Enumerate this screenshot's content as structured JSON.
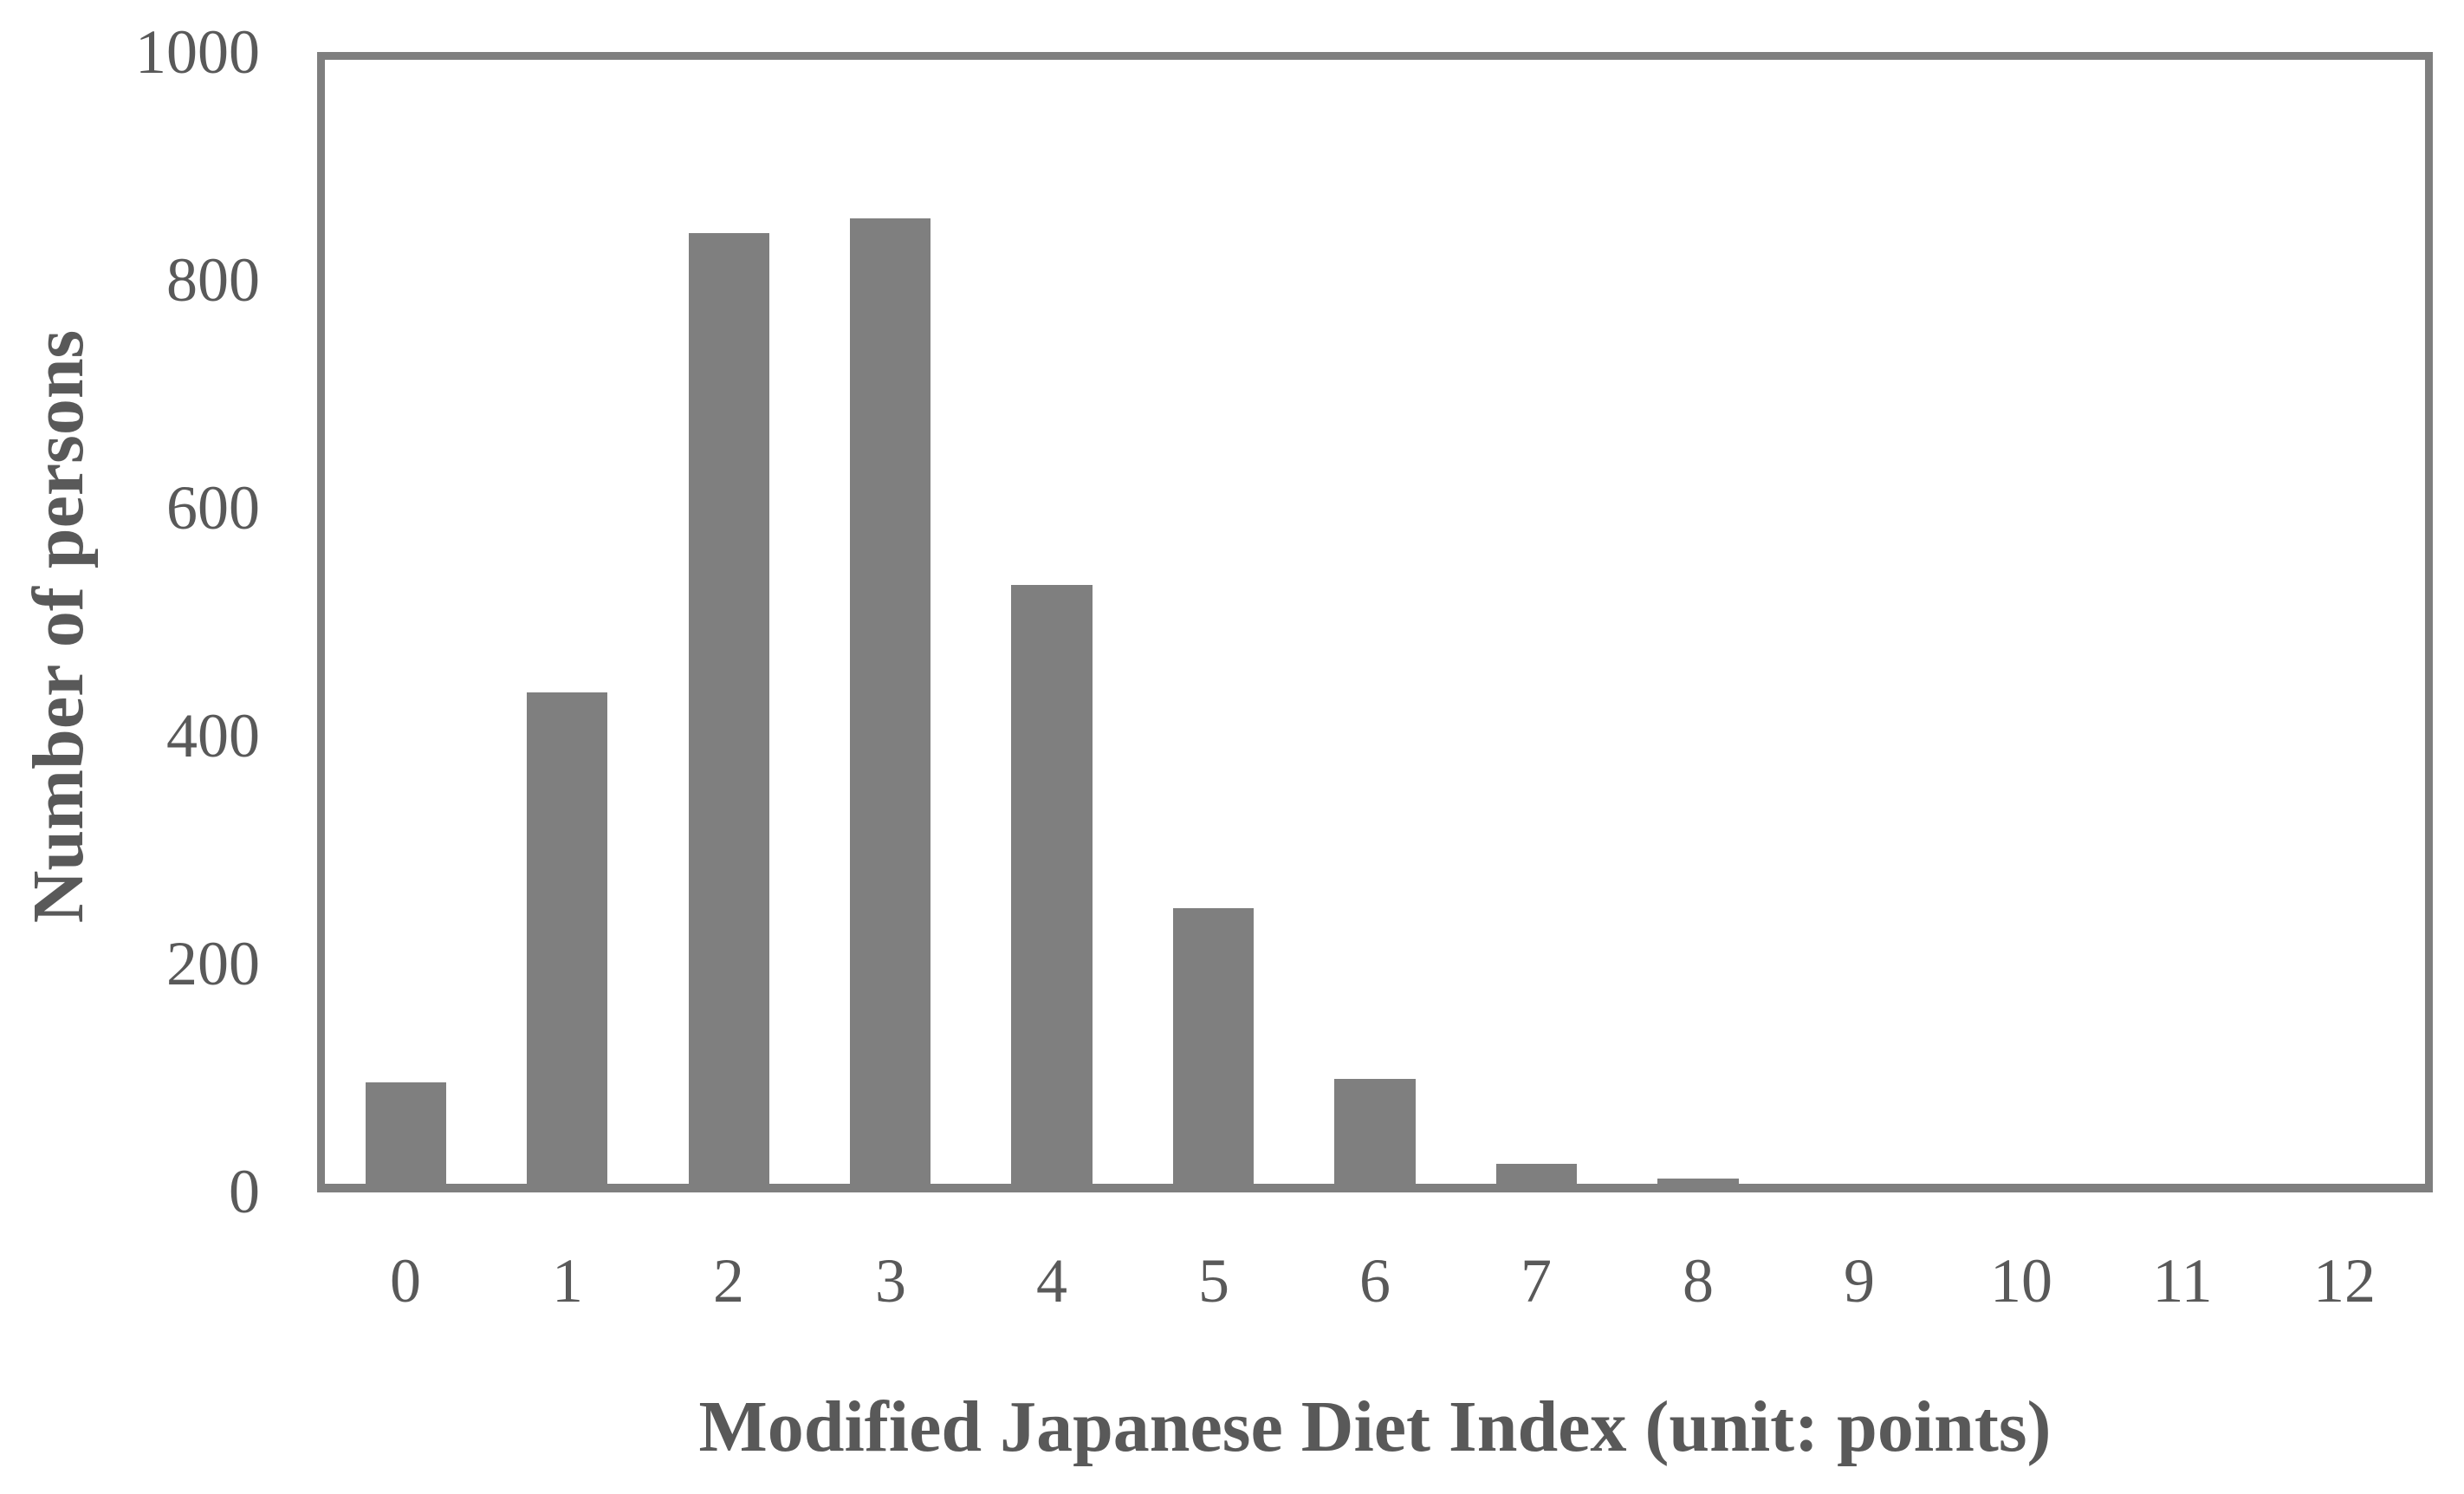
{
  "figure": {
    "background": "#ffffff",
    "frame_color": "#7f7f7f",
    "text_color": "#595959"
  },
  "chart_data": {
    "type": "bar",
    "title": "",
    "xlabel": "Modified Japanese Diet Index (unit: points)",
    "ylabel": "Number of persons",
    "categories": [
      "0",
      "1",
      "2",
      "3",
      "4",
      "5",
      "6",
      "7",
      "8",
      "9",
      "10",
      "11",
      "12"
    ],
    "values": [
      90,
      437,
      846,
      859,
      533,
      245,
      93,
      18,
      5,
      0,
      0,
      0,
      0
    ],
    "series_name": "Number of persons",
    "ylim": [
      0,
      1000
    ],
    "yticks": [
      0,
      200,
      400,
      600,
      800,
      1000
    ],
    "bar_color": "#7f7f7f",
    "grid": "off",
    "legend": "none",
    "bar_width_fraction": 0.5
  }
}
